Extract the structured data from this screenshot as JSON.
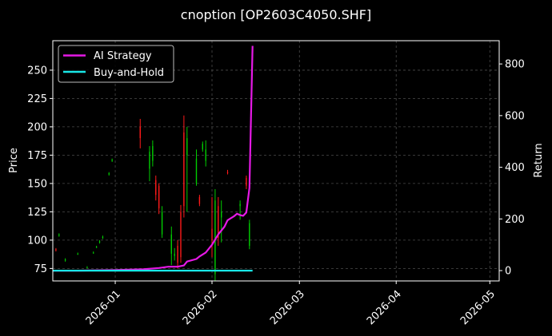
{
  "chart_data": {
    "type": "candlestick-line",
    "title": "cnoption [OP2603C4050.SHF]",
    "ylabel": "Price",
    "y2label": "Return",
    "xlim": [
      "2025-12-12",
      "2026-05-04"
    ],
    "ylim": [
      64,
      276
    ],
    "y2lim": [
      -40,
      890
    ],
    "x_ticks": [
      "2026-01-01",
      "2026-02-01",
      "2026-03-01",
      "2026-04-01",
      "2026-05-01"
    ],
    "x_tick_labels": [
      "2026-01",
      "2026-02",
      "2026-03",
      "2026-04",
      "2026-05"
    ],
    "y_ticks": [
      75,
      100,
      125,
      150,
      175,
      200,
      225,
      250
    ],
    "y_tick_labels": [
      "75",
      "100",
      "125",
      "150",
      "175",
      "200",
      "225",
      "250"
    ],
    "y2_ticks": [
      0,
      200,
      400,
      600,
      800
    ],
    "y2_tick_labels": [
      "0",
      "200",
      "400",
      "600",
      "800"
    ],
    "grid": true,
    "legend_position": "top-left",
    "colors": {
      "background": "#000000",
      "up": "#00cc00",
      "down": "#ff1a1a",
      "ai_strategy": "#e619e6",
      "buy_and_hold": "#19e6e6",
      "grid": "#4a4a4a"
    },
    "candles": [
      {
        "date": "2025-12-13",
        "open": 92,
        "high": 93,
        "low": 90,
        "close": 91
      },
      {
        "date": "2025-12-14",
        "open": 104,
        "high": 106,
        "low": 103,
        "close": 105
      },
      {
        "date": "2025-12-16",
        "open": 82,
        "high": 84,
        "low": 81,
        "close": 83
      },
      {
        "date": "2025-12-20",
        "open": 88,
        "high": 89,
        "low": 87,
        "close": 88
      },
      {
        "date": "2025-12-23",
        "open": 76,
        "high": 77,
        "low": 75,
        "close": 76
      },
      {
        "date": "2025-12-25",
        "open": 89,
        "high": 90,
        "low": 88,
        "close": 89
      },
      {
        "date": "2025-12-26",
        "open": 94,
        "high": 95,
        "low": 93,
        "close": 94
      },
      {
        "date": "2025-12-27",
        "open": 98,
        "high": 100,
        "low": 97,
        "close": 99
      },
      {
        "date": "2025-12-28",
        "open": 102,
        "high": 104,
        "low": 101,
        "close": 103
      },
      {
        "date": "2025-12-30",
        "open": 158,
        "high": 160,
        "low": 157,
        "close": 159
      },
      {
        "date": "2025-12-31",
        "open": 170,
        "high": 172,
        "low": 169,
        "close": 171
      },
      {
        "date": "2026-01-09",
        "open": 200,
        "high": 207,
        "low": 181,
        "close": 190
      },
      {
        "date": "2026-01-12",
        "open": 163,
        "high": 183,
        "low": 152,
        "close": 178
      },
      {
        "date": "2026-01-13",
        "open": 170,
        "high": 188,
        "low": 165,
        "close": 183
      },
      {
        "date": "2026-01-14",
        "open": 153,
        "high": 157,
        "low": 135,
        "close": 140
      },
      {
        "date": "2026-01-15",
        "open": 148,
        "high": 150,
        "low": 123,
        "close": 128
      },
      {
        "date": "2026-01-16",
        "open": 105,
        "high": 130,
        "low": 102,
        "close": 125
      },
      {
        "date": "2026-01-19",
        "open": 88,
        "high": 112,
        "low": 78,
        "close": 105
      },
      {
        "date": "2026-01-20",
        "open": 86,
        "high": 93,
        "low": 82,
        "close": 88
      },
      {
        "date": "2026-01-21",
        "open": 95,
        "high": 100,
        "low": 75,
        "close": 80
      },
      {
        "date": "2026-01-22",
        "open": 125,
        "high": 131,
        "low": 80,
        "close": 85
      },
      {
        "date": "2026-01-23",
        "open": 195,
        "high": 210,
        "low": 120,
        "close": 130
      },
      {
        "date": "2026-01-24",
        "open": 175,
        "high": 200,
        "low": 125,
        "close": 190
      },
      {
        "date": "2026-01-27",
        "open": 150,
        "high": 180,
        "low": 148,
        "close": 172
      },
      {
        "date": "2026-01-28",
        "open": 138,
        "high": 140,
        "low": 130,
        "close": 132
      },
      {
        "date": "2026-01-29",
        "open": 180,
        "high": 187,
        "low": 178,
        "close": 185
      },
      {
        "date": "2026-01-30",
        "open": 170,
        "high": 188,
        "low": 165,
        "close": 180
      },
      {
        "date": "2026-02-01",
        "open": 110,
        "high": 138,
        "low": 85,
        "close": 100
      },
      {
        "date": "2026-02-02",
        "open": 70,
        "high": 145,
        "low": 64,
        "close": 135
      },
      {
        "date": "2026-02-03",
        "open": 130,
        "high": 138,
        "low": 95,
        "close": 102
      },
      {
        "date": "2026-02-04",
        "open": 120,
        "high": 135,
        "low": 98,
        "close": 125
      },
      {
        "date": "2026-02-06",
        "open": 160,
        "high": 162,
        "low": 158,
        "close": 159
      },
      {
        "date": "2026-02-10",
        "open": 130,
        "high": 135,
        "low": 118,
        "close": 132
      },
      {
        "date": "2026-02-12",
        "open": 155,
        "high": 157,
        "low": 145,
        "close": 148
      },
      {
        "date": "2026-02-13",
        "open": 95,
        "high": 118,
        "low": 92,
        "close": 115
      }
    ],
    "series": [
      {
        "name": "AI Strategy",
        "x": [
          "2025-12-12",
          "2025-12-20",
          "2026-01-01",
          "2026-01-10",
          "2026-01-15",
          "2026-01-18",
          "2026-01-21",
          "2026-01-23",
          "2026-01-24",
          "2026-01-27",
          "2026-01-28",
          "2026-01-30",
          "2026-02-01",
          "2026-02-03",
          "2026-02-05",
          "2026-02-06",
          "2026-02-08",
          "2026-02-09",
          "2026-02-10",
          "2026-02-11",
          "2026-02-12",
          "2026-02-13",
          "2026-02-14"
        ],
        "values": [
          0,
          0,
          2,
          5,
          10,
          15,
          15,
          20,
          35,
          45,
          55,
          70,
          100,
          140,
          170,
          195,
          210,
          220,
          215,
          212,
          225,
          320,
          870
        ]
      },
      {
        "name": "Buy-and-Hold",
        "x": [
          "2025-12-12",
          "2026-02-14"
        ],
        "values": [
          0,
          0
        ]
      }
    ]
  }
}
